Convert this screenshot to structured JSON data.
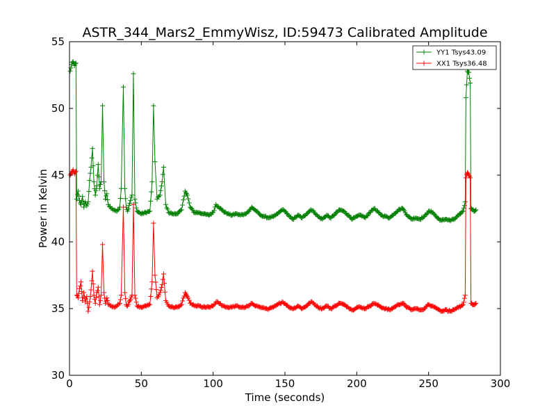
{
  "chart_data": {
    "type": "line",
    "title": "ASTR_344_Mars2_EmmyWisz, ID:59473 Calibrated Amplitude",
    "xlabel": "Time (seconds)",
    "ylabel": "Power in Kelvin",
    "xlim": [
      0,
      300
    ],
    "ylim": [
      30,
      55
    ],
    "xticks": [
      0,
      50,
      100,
      150,
      200,
      250,
      300
    ],
    "yticks": [
      30,
      35,
      40,
      45,
      50,
      55
    ],
    "xtick_labels": [
      "0",
      "50",
      "100",
      "150",
      "200",
      "250",
      "300"
    ],
    "ytick_labels": [
      "30",
      "35",
      "40",
      "45",
      "50",
      "55"
    ],
    "grid": false,
    "legend_position": "top-right",
    "marker": "+",
    "series": [
      {
        "name": "YY1 Tsys43.09",
        "color": "#007f00",
        "keypoints": [
          [
            0.5,
            52.8
          ],
          [
            1.5,
            53.3
          ],
          [
            2.5,
            53.5
          ],
          [
            3.5,
            53.2
          ],
          [
            4.5,
            53.4
          ],
          [
            5.0,
            43.2
          ],
          [
            6.0,
            43.8
          ],
          [
            7.0,
            43.1
          ],
          [
            8.0,
            42.8
          ],
          [
            9.0,
            43.4
          ],
          [
            10.0,
            42.6
          ],
          [
            11.0,
            43.0
          ],
          [
            12.0,
            42.7
          ],
          [
            13.0,
            43.0
          ],
          [
            14.0,
            44.6
          ],
          [
            15.0,
            45.6
          ],
          [
            16.0,
            47.0
          ],
          [
            17.0,
            44.5
          ],
          [
            18.0,
            43.5
          ],
          [
            19.0,
            44.2
          ],
          [
            20.0,
            45.8
          ],
          [
            21.0,
            44.0
          ],
          [
            22.0,
            44.5
          ],
          [
            23.0,
            50.2
          ],
          [
            24.0,
            44.5
          ],
          [
            25.0,
            43.2
          ],
          [
            26.0,
            43.6
          ],
          [
            27.0,
            42.8
          ],
          [
            29.0,
            42.5
          ],
          [
            31.0,
            42.4
          ],
          [
            33.0,
            42.3
          ],
          [
            35.0,
            42.6
          ],
          [
            36.0,
            44.0
          ],
          [
            37.5,
            51.6
          ],
          [
            38.5,
            44.0
          ],
          [
            39.5,
            42.6
          ],
          [
            40.5,
            42.3
          ],
          [
            42.0,
            42.9
          ],
          [
            43.5,
            43.5
          ],
          [
            44.5,
            52.6
          ],
          [
            45.5,
            43.2
          ],
          [
            47.0,
            42.3
          ],
          [
            50.0,
            42.1
          ],
          [
            53.0,
            42.2
          ],
          [
            56.0,
            42.3
          ],
          [
            57.5,
            44.5
          ],
          [
            58.5,
            50.2
          ],
          [
            59.5,
            46.0
          ],
          [
            61.0,
            43.2
          ],
          [
            63.0,
            43.5
          ],
          [
            64.5,
            44.5
          ],
          [
            65.5,
            45.6
          ],
          [
            67.0,
            42.8
          ],
          [
            69.0,
            42.2
          ],
          [
            72.0,
            42.1
          ],
          [
            75.0,
            42.1
          ],
          [
            78.0,
            42.4
          ],
          [
            80.5,
            43.8
          ],
          [
            82.0,
            43.5
          ],
          [
            84.0,
            42.6
          ],
          [
            87.0,
            42.2
          ],
          [
            90.0,
            42.2
          ],
          [
            93.0,
            42.1
          ],
          [
            97.0,
            42.0
          ],
          [
            100.0,
            42.2
          ],
          [
            102.0,
            42.8
          ],
          [
            104.0,
            42.6
          ],
          [
            107.0,
            42.3
          ],
          [
            110.0,
            42.1
          ],
          [
            113.0,
            42.0
          ],
          [
            116.0,
            42.1
          ],
          [
            119.0,
            42.0
          ],
          [
            122.0,
            42.1
          ],
          [
            125.0,
            42.3
          ],
          [
            127.0,
            42.6
          ],
          [
            130.0,
            42.3
          ],
          [
            133.0,
            42.0
          ],
          [
            136.0,
            41.9
          ],
          [
            139.0,
            41.8
          ],
          [
            142.0,
            41.9
          ],
          [
            145.0,
            42.1
          ],
          [
            148.0,
            42.4
          ],
          [
            150.0,
            42.3
          ],
          [
            153.0,
            41.9
          ],
          [
            156.0,
            41.7
          ],
          [
            159.0,
            42.0
          ],
          [
            162.0,
            41.8
          ],
          [
            165.0,
            42.1
          ],
          [
            168.0,
            42.4
          ],
          [
            170.0,
            42.3
          ],
          [
            173.0,
            41.9
          ],
          [
            176.0,
            41.7
          ],
          [
            179.0,
            42.0
          ],
          [
            182.0,
            41.8
          ],
          [
            185.0,
            42.1
          ],
          [
            188.0,
            42.4
          ],
          [
            191.0,
            42.3
          ],
          [
            194.0,
            42.0
          ],
          [
            197.0,
            41.7
          ],
          [
            200.0,
            41.9
          ],
          [
            203.0,
            42.0
          ],
          [
            206.0,
            41.8
          ],
          [
            209.0,
            42.2
          ],
          [
            212.0,
            42.5
          ],
          [
            214.0,
            42.3
          ],
          [
            217.0,
            42.0
          ],
          [
            220.0,
            41.9
          ],
          [
            223.0,
            41.8
          ],
          [
            226.0,
            42.1
          ],
          [
            229.0,
            42.4
          ],
          [
            232.0,
            42.5
          ],
          [
            235.0,
            42.0
          ],
          [
            238.0,
            41.7
          ],
          [
            241.0,
            41.8
          ],
          [
            244.0,
            41.7
          ],
          [
            247.0,
            41.9
          ],
          [
            250.0,
            42.3
          ],
          [
            253.0,
            42.2
          ],
          [
            256.0,
            41.8
          ],
          [
            259.0,
            41.6
          ],
          [
            262.0,
            41.7
          ],
          [
            265.0,
            41.6
          ],
          [
            268.0,
            41.7
          ],
          [
            271.0,
            42.0
          ],
          [
            274.0,
            42.3
          ],
          [
            275.5,
            43.0
          ],
          [
            276.0,
            50.8
          ],
          [
            277.0,
            52.8
          ],
          [
            278.0,
            52.7
          ],
          [
            279.0,
            51.9
          ],
          [
            279.5,
            42.5
          ],
          [
            280.5,
            42.4
          ],
          [
            282.0,
            42.3
          ],
          [
            283.0,
            42.4
          ]
        ]
      },
      {
        "name": "XX1 Tsys36.48",
        "color": "#ff0000",
        "keypoints": [
          [
            0.5,
            45.0
          ],
          [
            1.5,
            45.2
          ],
          [
            2.5,
            45.4
          ],
          [
            3.5,
            45.1
          ],
          [
            4.5,
            45.3
          ],
          [
            5.0,
            36.0
          ],
          [
            6.0,
            35.8
          ],
          [
            7.0,
            36.5
          ],
          [
            8.0,
            37.0
          ],
          [
            9.0,
            35.6
          ],
          [
            10.0,
            36.2
          ],
          [
            11.0,
            35.5
          ],
          [
            12.0,
            35.9
          ],
          [
            13.0,
            34.8
          ],
          [
            14.0,
            35.5
          ],
          [
            15.0,
            36.4
          ],
          [
            16.0,
            37.8
          ],
          [
            17.0,
            36.0
          ],
          [
            18.0,
            35.4
          ],
          [
            19.0,
            36.2
          ],
          [
            20.0,
            36.6
          ],
          [
            21.0,
            35.3
          ],
          [
            22.0,
            36.0
          ],
          [
            23.0,
            39.8
          ],
          [
            24.0,
            36.2
          ],
          [
            25.0,
            35.4
          ],
          [
            26.0,
            35.8
          ],
          [
            27.0,
            35.3
          ],
          [
            29.0,
            35.2
          ],
          [
            31.0,
            35.1
          ],
          [
            33.0,
            35.2
          ],
          [
            35.0,
            35.4
          ],
          [
            36.0,
            36.0
          ],
          [
            37.5,
            42.6
          ],
          [
            38.5,
            36.2
          ],
          [
            39.5,
            35.3
          ],
          [
            40.5,
            35.2
          ],
          [
            42.0,
            35.6
          ],
          [
            43.5,
            36.0
          ],
          [
            44.5,
            42.8
          ],
          [
            45.5,
            36.0
          ],
          [
            47.0,
            35.2
          ],
          [
            50.0,
            35.1
          ],
          [
            53.0,
            35.2
          ],
          [
            56.0,
            35.3
          ],
          [
            57.5,
            37.0
          ],
          [
            58.5,
            41.4
          ],
          [
            59.5,
            37.5
          ],
          [
            61.0,
            35.8
          ],
          [
            63.0,
            36.2
          ],
          [
            64.5,
            36.8
          ],
          [
            65.5,
            37.6
          ],
          [
            67.0,
            35.6
          ],
          [
            69.0,
            35.2
          ],
          [
            72.0,
            35.1
          ],
          [
            75.0,
            35.1
          ],
          [
            78.0,
            35.3
          ],
          [
            80.5,
            36.2
          ],
          [
            82.0,
            35.9
          ],
          [
            84.0,
            35.4
          ],
          [
            87.0,
            35.2
          ],
          [
            90.0,
            35.2
          ],
          [
            93.0,
            35.1
          ],
          [
            97.0,
            35.1
          ],
          [
            100.0,
            35.2
          ],
          [
            102.0,
            35.5
          ],
          [
            104.0,
            35.4
          ],
          [
            107.0,
            35.2
          ],
          [
            110.0,
            35.1
          ],
          [
            113.0,
            35.1
          ],
          [
            116.0,
            35.2
          ],
          [
            119.0,
            35.1
          ],
          [
            122.0,
            35.1
          ],
          [
            125.0,
            35.2
          ],
          [
            127.0,
            35.4
          ],
          [
            130.0,
            35.2
          ],
          [
            133.0,
            35.1
          ],
          [
            136.0,
            35.0
          ],
          [
            139.0,
            35.0
          ],
          [
            142.0,
            35.1
          ],
          [
            145.0,
            35.3
          ],
          [
            148.0,
            35.5
          ],
          [
            150.0,
            35.4
          ],
          [
            153.0,
            35.1
          ],
          [
            156.0,
            35.0
          ],
          [
            159.0,
            35.2
          ],
          [
            162.0,
            35.0
          ],
          [
            165.0,
            35.2
          ],
          [
            168.0,
            35.5
          ],
          [
            170.0,
            35.4
          ],
          [
            173.0,
            35.1
          ],
          [
            176.0,
            35.0
          ],
          [
            179.0,
            35.2
          ],
          [
            182.0,
            35.0
          ],
          [
            185.0,
            35.2
          ],
          [
            188.0,
            35.4
          ],
          [
            191.0,
            35.3
          ],
          [
            194.0,
            35.1
          ],
          [
            197.0,
            34.9
          ],
          [
            200.0,
            35.1
          ],
          [
            203.0,
            35.1
          ],
          [
            206.0,
            35.0
          ],
          [
            209.0,
            35.2
          ],
          [
            212.0,
            35.4
          ],
          [
            214.0,
            35.3
          ],
          [
            217.0,
            35.1
          ],
          [
            220.0,
            35.0
          ],
          [
            223.0,
            34.9
          ],
          [
            226.0,
            35.1
          ],
          [
            229.0,
            35.3
          ],
          [
            232.0,
            35.4
          ],
          [
            235.0,
            35.1
          ],
          [
            238.0,
            34.9
          ],
          [
            241.0,
            35.0
          ],
          [
            244.0,
            34.9
          ],
          [
            247.0,
            35.0
          ],
          [
            250.0,
            35.3
          ],
          [
            253.0,
            35.2
          ],
          [
            256.0,
            35.0
          ],
          [
            259.0,
            34.8
          ],
          [
            262.0,
            34.9
          ],
          [
            265.0,
            34.8
          ],
          [
            268.0,
            34.9
          ],
          [
            271.0,
            35.1
          ],
          [
            274.0,
            35.3
          ],
          [
            275.5,
            36.0
          ],
          [
            276.0,
            44.8
          ],
          [
            277.0,
            45.2
          ],
          [
            278.0,
            45.0
          ],
          [
            279.0,
            44.8
          ],
          [
            279.5,
            35.4
          ],
          [
            280.5,
            35.3
          ],
          [
            282.0,
            35.3
          ],
          [
            283.0,
            35.4
          ]
        ]
      }
    ]
  }
}
